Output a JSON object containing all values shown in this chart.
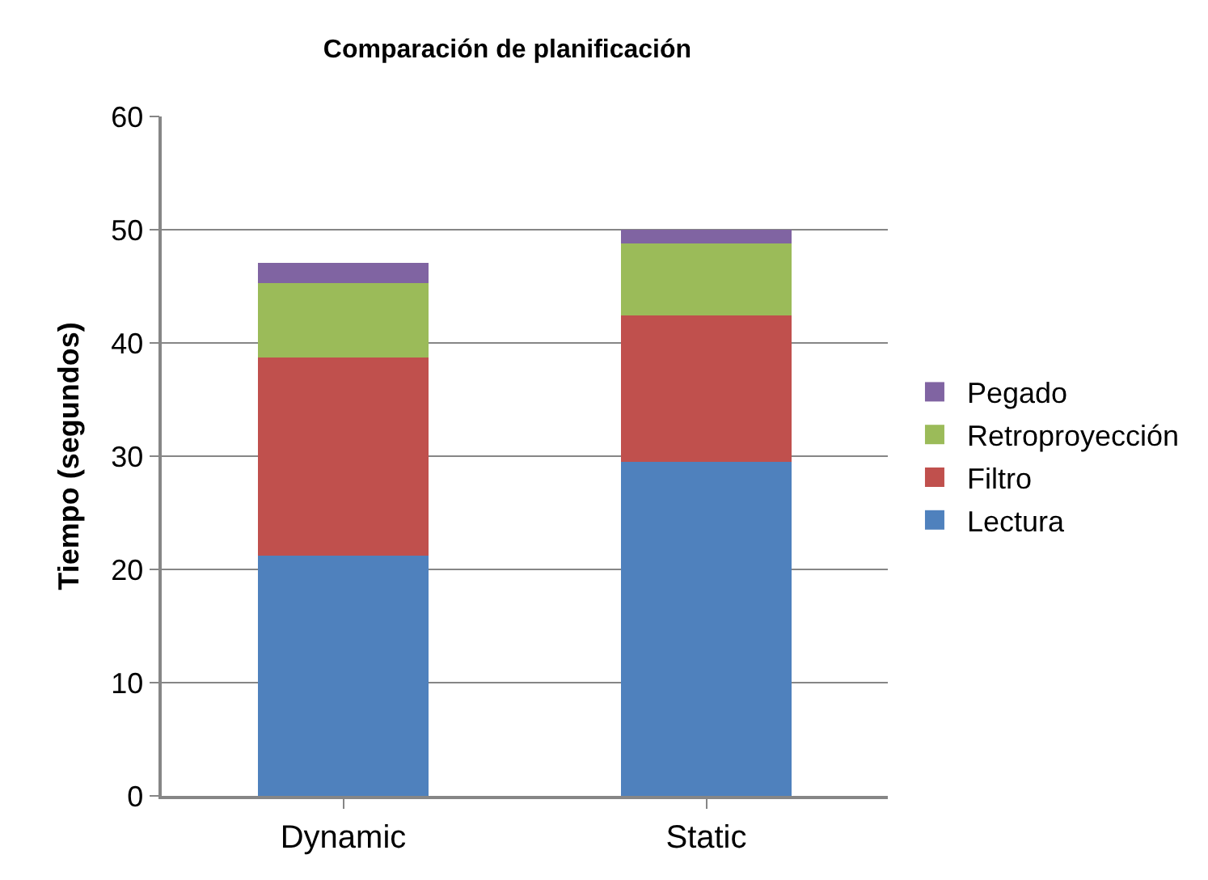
{
  "chart_data": {
    "type": "bar",
    "title": "Comparación de planificación",
    "ylabel": "Tiempo (segundos)",
    "categories": [
      "Dynamic",
      "Static"
    ],
    "stacked": true,
    "series": [
      {
        "name": "Lectura",
        "color": "#4f81bd",
        "values": [
          21.2,
          29.5
        ]
      },
      {
        "name": "Filtro",
        "color": "#c0504d",
        "values": [
          17.5,
          12.9
        ]
      },
      {
        "name": "Retroproyección",
        "color": "#9bbb59",
        "values": [
          6.6,
          6.4
        ]
      },
      {
        "name": "Pegado",
        "color": "#8064a2",
        "values": [
          1.8,
          1.2
        ]
      }
    ],
    "ylim": [
      0,
      60
    ],
    "yticks": [
      0,
      10,
      20,
      30,
      40,
      50,
      60
    ],
    "grid": "y",
    "legend": "right"
  }
}
